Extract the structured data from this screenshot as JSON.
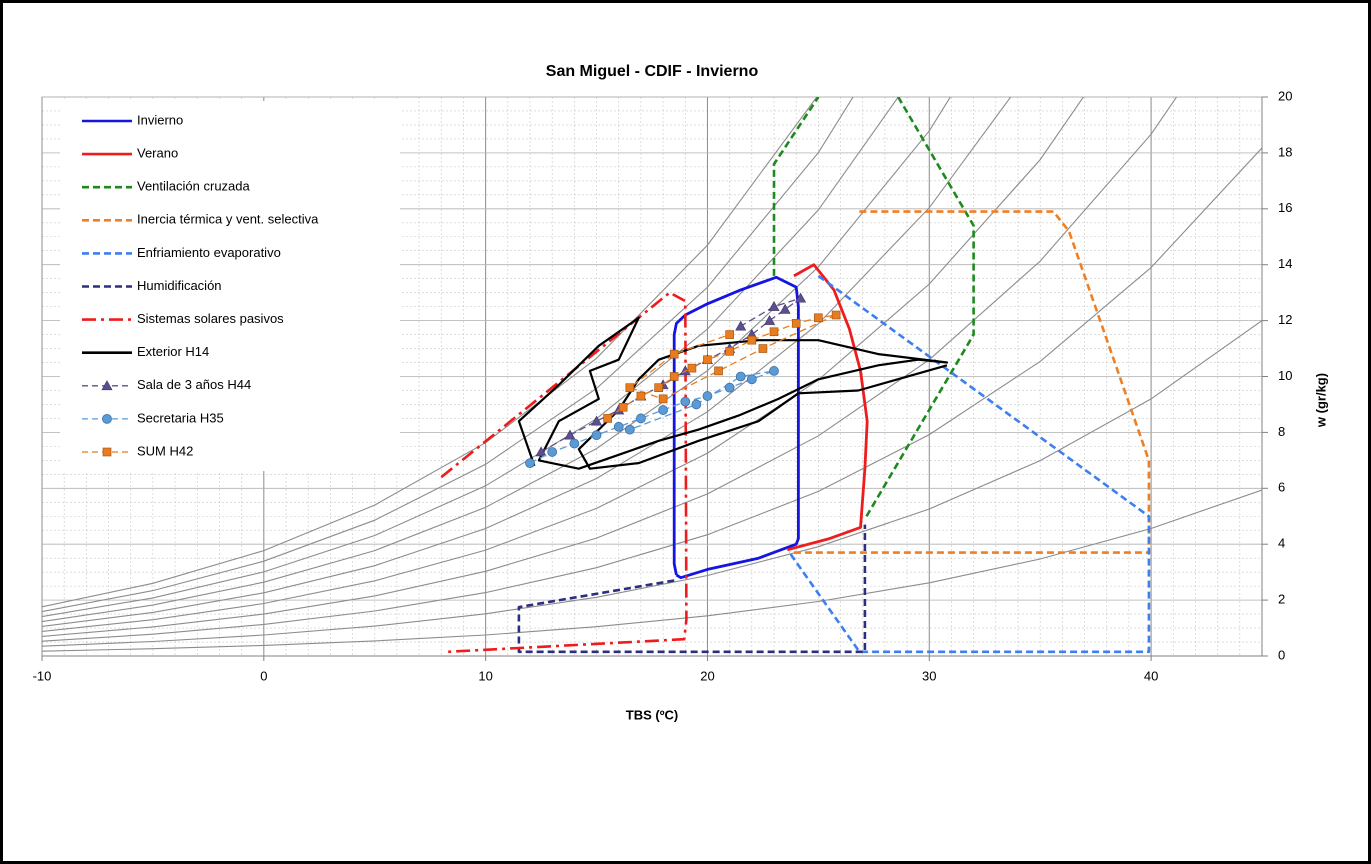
{
  "chart_data": {
    "type": "psychrometric",
    "title": "San Miguel - CDIF - Invierno",
    "x_label": "TBS (ºC)",
    "y_label": "w (gr/kg)",
    "xlim": [
      -10,
      45
    ],
    "ylim": [
      0,
      20
    ],
    "xticks": [
      -10,
      0,
      10,
      20,
      30,
      40
    ],
    "yticks": [
      0,
      2,
      4,
      6,
      8,
      10,
      12,
      14,
      16,
      18,
      20
    ],
    "y_axis_side": "right",
    "grid": true,
    "minor_grid": {
      "x": 1,
      "y": 0.5
    },
    "legend": "upper left",
    "rh_curves": {
      "color": "#8c8c8c",
      "x": [
        -10,
        -5,
        0,
        5,
        10,
        15,
        20,
        25,
        30,
        35,
        40,
        45
      ],
      "curves": [
        [
          0.17,
          0.26,
          0.38,
          0.54,
          0.75,
          1.05,
          1.44,
          1.95,
          2.62,
          3.47,
          4.56,
          5.94
        ],
        [
          0.35,
          0.52,
          0.75,
          1.07,
          1.51,
          2.1,
          2.88,
          3.91,
          5.26,
          6.99,
          9.2,
          12.0
        ],
        [
          0.53,
          0.78,
          1.13,
          1.61,
          2.27,
          3.16,
          4.34,
          5.89,
          7.92,
          10.54,
          13.9,
          18.18
        ],
        [
          0.7,
          1.04,
          1.5,
          2.15,
          3.03,
          4.22,
          5.8,
          7.88,
          10.6,
          14.13,
          18.67,
          24.47
        ],
        [
          0.88,
          1.3,
          1.88,
          2.69,
          3.79,
          5.28,
          7.26,
          9.88,
          13.31,
          17.76,
          23.51,
          null
        ],
        [
          1.06,
          1.56,
          2.26,
          3.23,
          4.56,
          6.35,
          8.74,
          11.89,
          16.04,
          21.44,
          null,
          null
        ],
        [
          1.23,
          1.82,
          2.64,
          3.77,
          5.32,
          7.42,
          10.21,
          13.92,
          18.79,
          25.16,
          null,
          null
        ],
        [
          1.41,
          2.08,
          3.01,
          4.31,
          6.09,
          8.49,
          11.7,
          15.96,
          21.57,
          null,
          null,
          null
        ],
        [
          1.59,
          2.34,
          3.39,
          4.86,
          6.86,
          9.57,
          13.2,
          18.01,
          24.38,
          null,
          null,
          null
        ],
        [
          1.76,
          2.6,
          3.77,
          5.4,
          7.63,
          10.65,
          14.7,
          20.08,
          27.2,
          null,
          null,
          null
        ]
      ]
    },
    "series": [
      {
        "name": "Invierno",
        "color": "#1515e0",
        "dash": "solid",
        "x": [
          18.6,
          18.5,
          18.5,
          18.6,
          19.0,
          20.0,
          21.5,
          23.1,
          24.0,
          24.1,
          24.1,
          24.0,
          22.3,
          20.0,
          18.8,
          18.6
        ],
        "values": [
          2.9,
          3.3,
          11.5,
          11.9,
          12.2,
          12.6,
          13.1,
          13.55,
          13.2,
          12.5,
          4.2,
          4.0,
          3.5,
          3.1,
          2.8,
          2.9
        ]
      },
      {
        "name": "Verano",
        "color": "#ee1c1c",
        "dash": "solid",
        "x": [
          23.9,
          24.8,
          25.7,
          26.4,
          26.9,
          27.2,
          27.1,
          26.9,
          25.5,
          23.6
        ],
        "values": [
          13.6,
          14.0,
          13.1,
          11.7,
          10.2,
          8.4,
          6.7,
          4.6,
          4.2,
          3.8
        ]
      },
      {
        "name": "Ventilación cruzada",
        "color": "#1e8a1e",
        "dash": "dash",
        "x": [
          23.0,
          23.0,
          25.0,
          null,
          28.6,
          32.0,
          32.0,
          27.1
        ],
        "values": [
          13.6,
          17.6,
          20.0,
          null,
          20.0,
          15.4,
          11.5,
          4.9
        ]
      },
      {
        "name": "Inercia térmica y vent. selectiva",
        "color": "#f07f22",
        "dash": "dash",
        "x": [
          26.85,
          35.6,
          36.3,
          39.9,
          39.9,
          23.7
        ],
        "values": [
          15.9,
          15.9,
          15.2,
          7.0,
          3.7,
          3.7
        ]
      },
      {
        "name": "Enfriamiento evaporativo",
        "color": "#3d7ff0",
        "dash": "dash",
        "x": [
          25.0,
          39.9,
          39.9,
          26.85,
          23.7
        ],
        "values": [
          13.6,
          5.0,
          0.15,
          0.15,
          3.7
        ]
      },
      {
        "name": "Humidificación",
        "color": "#2e2e80",
        "dash": "dash",
        "x": [
          18.5,
          11.5,
          11.5,
          27.1,
          27.1
        ],
        "values": [
          2.7,
          1.75,
          0.15,
          0.15,
          4.7
        ]
      },
      {
        "name": "Sistemas solares pasivos",
        "color": "#ee1c1c",
        "dash": "dashdot",
        "x": [
          8.0,
          18.3,
          19.0,
          19.05,
          18.95,
          8.3
        ],
        "values": [
          6.4,
          13.0,
          12.7,
          1.3,
          0.6,
          0.15
        ]
      },
      {
        "name": "Exterior H14",
        "color": "#000000",
        "dash": "solid",
        "x": [
          12.2,
          11.5,
          13.3,
          15.1,
          16.9,
          16.0,
          14.7,
          15.1,
          13.3,
          12.4,
          14.2,
          16.0,
          17.8,
          19.6,
          21.4,
          23.2,
          25.0,
          27.7,
          29.5,
          30.8,
          27.7,
          25.0,
          22.3,
          19.6,
          17.8,
          16.9,
          16.0,
          15.1,
          14.2,
          14.7,
          16.9,
          19.6,
          22.3,
          24.1,
          26.8,
          30.8
        ],
        "values": [
          6.8,
          8.4,
          9.7,
          11.1,
          12.1,
          10.6,
          10.2,
          9.2,
          8.4,
          7.0,
          6.7,
          7.2,
          7.7,
          8.1,
          8.6,
          9.2,
          9.9,
          10.4,
          10.6,
          10.5,
          10.8,
          11.3,
          11.3,
          11.1,
          10.6,
          9.9,
          8.8,
          8.1,
          7.4,
          6.7,
          6.9,
          7.7,
          8.4,
          9.4,
          9.5,
          10.4
        ]
      },
      {
        "name": "Sala de 3 años H44",
        "color": "#5d4f8f",
        "dash": "dash",
        "marker": "triangle",
        "x": [
          12.5,
          13.8,
          15.0,
          16.0,
          17.0,
          18.0,
          19.0,
          20.0,
          21.0,
          22.0,
          22.8,
          23.5,
          24.2,
          23.0,
          21.5
        ],
        "values": [
          7.3,
          7.9,
          8.4,
          8.8,
          9.3,
          9.7,
          10.2,
          10.6,
          11.0,
          11.5,
          12.0,
          12.4,
          12.8,
          12.5,
          11.8
        ]
      },
      {
        "name": "Secretaria H35",
        "color": "#5b9bd5",
        "dash": "dash",
        "marker": "circle",
        "x": [
          12.0,
          13.0,
          14.0,
          15.0,
          16.0,
          17.0,
          18.0,
          19.0,
          20.0,
          21.0,
          22.0,
          23.0,
          21.5,
          19.5,
          16.5
        ],
        "values": [
          6.9,
          7.3,
          7.6,
          7.9,
          8.2,
          8.5,
          8.8,
          9.1,
          9.3,
          9.6,
          9.9,
          10.2,
          10.0,
          9.0,
          8.1
        ]
      },
      {
        "name": "SUM H42",
        "color": "#e87c1e",
        "dash": "dash",
        "marker": "square",
        "x": [
          15.5,
          16.2,
          17.0,
          17.8,
          18.5,
          19.3,
          20.0,
          21.0,
          22.0,
          23.0,
          24.0,
          25.0,
          25.8,
          22.5,
          20.5,
          18.0,
          16.5,
          18.5,
          21.0
        ],
        "values": [
          8.5,
          8.9,
          9.3,
          9.6,
          10.0,
          10.3,
          10.6,
          10.9,
          11.3,
          11.6,
          11.9,
          12.1,
          12.2,
          11.0,
          10.2,
          9.2,
          9.6,
          10.8,
          11.5
        ]
      }
    ]
  }
}
